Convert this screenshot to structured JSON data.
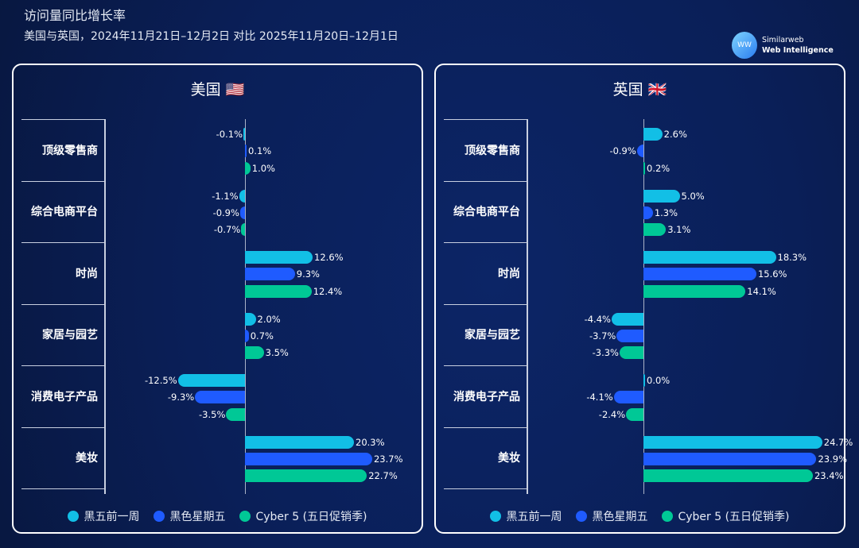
{
  "header": {
    "title": "访问量同比增长率",
    "subtitle": "美国与英国，2024年11月21日–12月2日 对比 2025年11月20日–12月1日"
  },
  "logo": {
    "line1": "Similarweb",
    "line2": "Web Intelligence",
    "mark": "WW"
  },
  "colors": {
    "黑五前一周": "#12bfe6",
    "黑色星期五": "#1f5bff",
    "Cyber 5 (五日促销季)": "#00c896",
    "background": "#0a1f58"
  },
  "chart_data": [
    {
      "type": "bar",
      "orientation": "horizontal",
      "title": "美国 🇺🇸",
      "categories": [
        "顶级零售商",
        "综合电商平台",
        "时尚",
        "家居与园艺",
        "消费电子产品",
        "美妆"
      ],
      "series": [
        {
          "name": "黑五前一周",
          "values": [
            -0.1,
            -1.1,
            12.6,
            2.0,
            -12.5,
            20.3
          ]
        },
        {
          "name": "黑色星期五",
          "values": [
            0.1,
            -0.9,
            9.3,
            0.7,
            -9.3,
            23.7
          ]
        },
        {
          "name": "Cyber 5 (五日促销季)",
          "values": [
            1.0,
            -0.7,
            12.4,
            3.5,
            -3.5,
            22.7
          ]
        }
      ],
      "value_format": "percent",
      "legend": "bottom"
    },
    {
      "type": "bar",
      "orientation": "horizontal",
      "title": "英国 🇬🇧",
      "categories": [
        "顶级零售商",
        "综合电商平台",
        "时尚",
        "家居与园艺",
        "消费电子产品",
        "美妆"
      ],
      "series": [
        {
          "name": "黑五前一周",
          "values": [
            2.6,
            5.0,
            18.3,
            -4.4,
            0.0,
            24.7
          ]
        },
        {
          "name": "黑色星期五",
          "values": [
            -0.9,
            1.3,
            15.6,
            -3.7,
            -4.1,
            23.9
          ]
        },
        {
          "name": "Cyber 5 (五日促销季)",
          "values": [
            0.2,
            3.1,
            14.1,
            -3.3,
            -2.4,
            23.4
          ]
        }
      ],
      "value_format": "percent",
      "legend": "bottom"
    }
  ]
}
